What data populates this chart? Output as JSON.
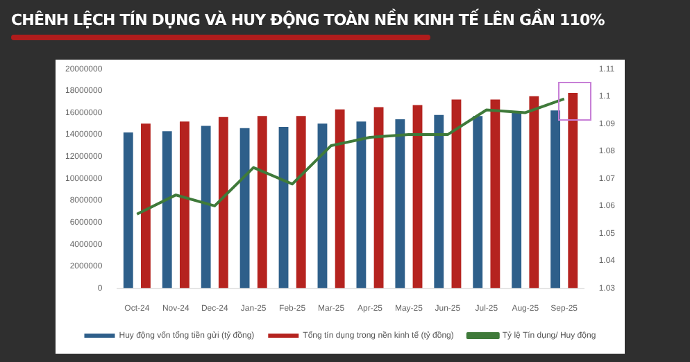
{
  "chart_data": {
    "type": "bar",
    "title": "CHÊNH LỆCH TÍN DỤNG VÀ HUY ĐỘNG TOÀN NỀN KINH TẾ LÊN GẦN 110%",
    "categories": [
      "Oct-24",
      "Nov-24",
      "Dec-24",
      "Jan-25",
      "Feb-25",
      "Mar-25",
      "Apr-25",
      "May-25",
      "Jun-25",
      "Jul-25",
      "Aug-25",
      "Sep-25"
    ],
    "series": [
      {
        "name": "Huy động vốn tổng tiền gửi (tỷ đồng)",
        "color": "#2e5f8a",
        "values": [
          14200000,
          14300000,
          14800000,
          14600000,
          14700000,
          15000000,
          15200000,
          15400000,
          15800000,
          15700000,
          16000000,
          16200000
        ]
      },
      {
        "name": "Tổng tín dụng trong nền kinh tế (tỷ đồng)",
        "color": "#b5231f",
        "values": [
          15000000,
          15200000,
          15600000,
          15700000,
          15700000,
          16300000,
          16500000,
          16700000,
          17200000,
          17200000,
          17500000,
          17800000
        ]
      },
      {
        "name": "Tỷ lệ Tín dụng/ Huy động",
        "type": "line",
        "axis": "y2",
        "color": "#3f7a3a",
        "values": [
          1.057,
          1.064,
          1.06,
          1.074,
          1.068,
          1.082,
          1.085,
          1.086,
          1.086,
          1.095,
          1.094,
          1.099
        ]
      }
    ],
    "ylim": [
      0,
      20000000
    ],
    "yticks": [
      0,
      2000000,
      4000000,
      6000000,
      8000000,
      10000000,
      12000000,
      14000000,
      16000000,
      18000000,
      20000000
    ],
    "y2lim": [
      1.03,
      1.11
    ],
    "y2ticks": [
      1.03,
      1.04,
      1.05,
      1.06,
      1.07,
      1.08,
      1.09,
      1.1,
      1.11
    ],
    "legend": "bottom",
    "marker": "none"
  }
}
